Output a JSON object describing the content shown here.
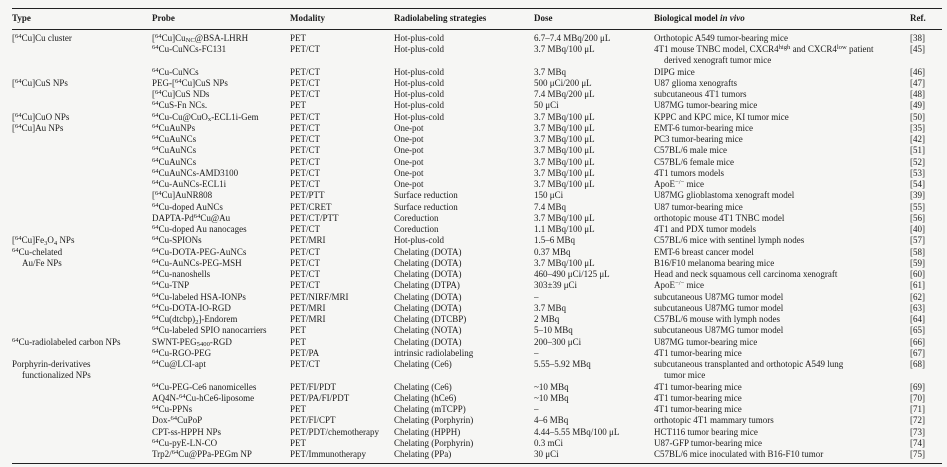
{
  "accent_colors": {
    "text": "#1b1b1b",
    "rule": "#222222",
    "background": "#f6f6f4"
  },
  "table": {
    "columns": [
      {
        "key": "type",
        "label": "Type"
      },
      {
        "key": "probe",
        "label": "Probe"
      },
      {
        "key": "modality",
        "label": "Modality"
      },
      {
        "key": "strategy",
        "label": "Radiolabeling strategies"
      },
      {
        "key": "dose",
        "label": "Dose"
      },
      {
        "key": "model",
        "label": "Biological model ~{in vivo}"
      },
      {
        "key": "ref",
        "label": "Ref."
      }
    ],
    "rows": [
      {
        "type": "[^{64}Cu]Cu cluster",
        "probe": "[^{64}Cu]Cu_{NC}@BSA-LHRH",
        "modality": "PET",
        "strategy": "Hot-plus-cold",
        "dose": "6.7–7.4 MBq/200 μL",
        "model": "Orthotopic A549 tumor-bearing mice",
        "ref": "[38]"
      },
      {
        "type": "",
        "probe": "^{64}Cu-CuNCs-FC131",
        "modality": "PET/CT",
        "strategy": "Hot-plus-cold",
        "dose": "3.7 MBq/100 μL",
        "model": "4T1 mouse TNBC model, CXCR4^{high} and CXCR4^{low} patient\nderived xenograft tumor mice",
        "ref": "[45]"
      },
      {
        "type": "",
        "probe": "^{64}Cu-CuNCs",
        "modality": "PET/CT",
        "strategy": "Hot-plus-cold",
        "dose": "3.7 MBq",
        "model": "DIPG mice",
        "ref": "[46]"
      },
      {
        "type": "[^{64}Cu]CuS NPs",
        "probe": "PEG-[^{64}Cu]CuS NPs",
        "modality": "PET/CT",
        "strategy": "Hot-plus-cold",
        "dose": "500 μCi/200 μL",
        "model": "U87 glioma xenografts",
        "ref": "[47]"
      },
      {
        "type": "",
        "probe": "[^{64}Cu]CuS NDs",
        "modality": "PET/CT",
        "strategy": "Hot-plus-cold",
        "dose": "7.4 MBq/200 μL",
        "model": "subcutaneous 4T1 tumors",
        "ref": "[48]"
      },
      {
        "type": "",
        "probe": "^{64}CuS-Fn NCs.",
        "modality": "PET",
        "strategy": "Hot-plus-cold",
        "dose": "50 μCi",
        "model": "U87MG tumor-bearing mice",
        "ref": "[49]"
      },
      {
        "type": "[^{64}Cu]CuO NPs",
        "probe": "^{64}Cu-Cu@CuO_{x}-ECL1i-Gem",
        "modality": "PET/CT",
        "strategy": "Hot-plus-cold",
        "dose": "3.7 MBq/100 μL",
        "model": "KPPC and KPC mice, KI tumor mice",
        "ref": "[50]"
      },
      {
        "type": "[^{64}Cu]Au NPs",
        "probe": "^{64}CuAuNPs",
        "modality": "PET/CT",
        "strategy": "One-pot",
        "dose": "3.7 MBq/100 μL",
        "model": "EMT-6 tumor-bearing mice",
        "ref": "[35]"
      },
      {
        "type": "",
        "probe": "^{64}CuAuNCs",
        "modality": "PET/CT",
        "strategy": "One-pot",
        "dose": "3.7 MBq/100 μL",
        "model": "PC3 tumor-bearing mice",
        "ref": "[42]"
      },
      {
        "type": "",
        "probe": "^{64}CuAuNCs",
        "modality": "PET/CT",
        "strategy": "One-pot",
        "dose": "3.7 MBq/100 μL",
        "model": "C57BL/6 male mice",
        "ref": "[51]"
      },
      {
        "type": "",
        "probe": "^{64}CuAuNCs",
        "modality": "PET/CT",
        "strategy": "One-pot",
        "dose": "3.7 MBq/100 μL",
        "model": "C57BL/6 female mice",
        "ref": "[52]"
      },
      {
        "type": "",
        "probe": "^{64}CuAuNCs-AMD3100",
        "modality": "PET/CT",
        "strategy": "One-pot",
        "dose": "3.7 MBq/100 μL",
        "model": "4T1 tumors models",
        "ref": "[53]"
      },
      {
        "type": "",
        "probe": "^{64}Cu-AuNCs-ECL1i",
        "modality": "PET/CT",
        "strategy": "One-pot",
        "dose": "3.7 MBq/100 μL",
        "model": "ApoE^{−/−} mice",
        "ref": "[54]"
      },
      {
        "type": "",
        "probe": "[^{64}Cu]AuNR808",
        "modality": "PET/PTT",
        "strategy": "Surface reduction",
        "dose": "150 μCi",
        "model": "U87MG glioblastoma xenograft model",
        "ref": "[39]"
      },
      {
        "type": "",
        "probe": "^{64}Cu-doped AuNCs",
        "modality": "PET/CRET",
        "strategy": "Surface reduction",
        "dose": "7.4 MBq",
        "model": "U87 tumor-bearing mice",
        "ref": "[55]"
      },
      {
        "type": "",
        "probe": "DAPTA-Pd^{64}Cu@Au",
        "modality": "PET/CT/PTT",
        "strategy": "Coreduction",
        "dose": "3.7 MBq/100 μL",
        "model": "orthotopic mouse 4T1 TNBC model",
        "ref": "[56]"
      },
      {
        "type": "",
        "probe": "^{64}Cu-doped Au nanocages",
        "modality": "PET/CT",
        "strategy": "Coreduction",
        "dose": "1.1 MBq/100 μL",
        "model": "4T1 and PDX tumor models",
        "ref": "[40]"
      },
      {
        "type": "[^{64}Cu]Fe_{3}O_{4} NPs",
        "probe": "^{64}Cu-SPIONs",
        "modality": "PET/MRI",
        "strategy": "Hot-plus-cold",
        "dose": "1.5–6 MBq",
        "model": "C57BL/6 mice with sentinel lymph nodes",
        "ref": "[57]"
      },
      {
        "type": "^{64}Cu-chelated\nAu/Fe NPs",
        "type_span": 2,
        "probe": "^{64}Cu-DOTA-PEG-AuNCs",
        "modality": "PET/CT",
        "strategy": "Chelating (DOTA)",
        "dose": "0.37 MBq",
        "model": "EMT-6 breast cancer model",
        "ref": "[58]"
      },
      {
        "type": null,
        "probe": "^{64}Cu-AuNCs-PEG-MSH",
        "modality": "PET/CT",
        "strategy": "Chelating (DOTA)",
        "dose": "3.7 MBq/100 μL",
        "model": "B16/F10 melanoma bearing mice",
        "ref": "[59]"
      },
      {
        "type": "",
        "probe": "^{64}Cu-nanoshells",
        "modality": "PET/CT",
        "strategy": "Chelating (DOTA)",
        "dose": "460–490 μCi/125 μL",
        "model": "Head and neck squamous cell carcinoma xenograft",
        "ref": "[60]"
      },
      {
        "type": "",
        "probe": "^{64}Cu-TNP",
        "modality": "PET/CT",
        "strategy": "Chelating (DTPA)",
        "dose": "303±39 μCi",
        "model": "ApoE^{−/−} mice",
        "ref": "[61]"
      },
      {
        "type": "",
        "probe": "^{64}Cu-labeled HSA-IONPs",
        "modality": "PET/NIRF/MRI",
        "strategy": "Chelating (DOTA)",
        "dose": "–",
        "model": "subcutaneous U87MG tumor model",
        "ref": "[62]"
      },
      {
        "type": "",
        "probe": "^{64}Cu-DOTA-IO-RGD",
        "modality": "PET/MRI",
        "strategy": "Chelating (DOTA)",
        "dose": "3.7 MBq",
        "model": "subcutaneous U87MG tumor model",
        "ref": "[63]"
      },
      {
        "type": "",
        "probe": "^{64}Cu(dtcbp)_{2}]-Endorem",
        "modality": "PET/MRI",
        "strategy": "Chelating (DTCBP)",
        "dose": "2 MBq",
        "model": "C57BL/6 mouse with lymph nodes",
        "ref": "[64]"
      },
      {
        "type": "",
        "probe": "^{64}Cu-labeled SPIO nanocarriers",
        "modality": "PET",
        "strategy": "Chelating (NOTA)",
        "dose": "5–10 MBq",
        "model": "subcutaneous U87MG tumor model",
        "ref": "[65]"
      },
      {
        "type": "^{64}Cu-radiolabeled carbon NPs",
        "probe": "SWNT-PEG_{5400}-RGD",
        "modality": "PET",
        "strategy": "Chelating (DOTA)",
        "dose": "200–300 μCi",
        "model": "U87MG tumor-bearing mice",
        "ref": "[66]"
      },
      {
        "type": "",
        "probe": "^{64}Cu-RGO-PEG",
        "modality": "PET/PA",
        "strategy": "intrinsic radiolabeling",
        "dose": "–",
        "model": "4T1 tumor-bearing mice",
        "ref": "[67]"
      },
      {
        "type": "Porphyrin-derivatives\nfunctionalized NPs",
        "probe": "^{64}Cu@LCI-apt",
        "modality": "PET/CT",
        "strategy": "Chelating (Ce6)",
        "dose": "5.55–5.92 MBq",
        "model": "subcutaneous transplanted and orthotopic A549 lung\ntumor mice",
        "ref": "[68]"
      },
      {
        "type": "",
        "probe": "^{64}Cu-PEG-Ce6 nanomicelles",
        "modality": "PET/FI/PDT",
        "strategy": "Chelating (Ce6)",
        "dose": "~10 MBq",
        "model": "4T1 tumor-bearing mice",
        "ref": "[69]"
      },
      {
        "type": "",
        "probe": "AQ4N-^{64}Cu-hCe6-liposome",
        "modality": "PET/PA/FI/PDT",
        "strategy": "Chelating (hCe6)",
        "dose": "~10 MBq",
        "model": "4T1 tumor-bearing mice",
        "ref": "[70]"
      },
      {
        "type": "",
        "probe": "^{64}Cu-PPNs",
        "modality": "PET",
        "strategy": "Chelating (mTCPP)",
        "dose": "–",
        "model": "4T1 tumor-bearing mice",
        "ref": "[71]"
      },
      {
        "type": "",
        "probe": "Dox-^{64}CuPoP",
        "modality": "PET/FI/CPT",
        "strategy": "Chelating (Porphyrin)",
        "dose": "4–6 MBq",
        "model": "orthotopic 4T1 mammary tumors",
        "ref": "[72]"
      },
      {
        "type": "",
        "probe": "CPT-ss-HPPH NPs",
        "modality": "PET/PDT/chemotherapy",
        "strategy": "Chelating (HPPH)",
        "dose": "4.44–5.55 MBq/100 μL",
        "model": "HCT116 tumor bearing mice",
        "ref": "[73]"
      },
      {
        "type": "",
        "probe": "^{64}Cu-pyE-LN-CO",
        "modality": "PET",
        "strategy": "Chelating (Porphyrin)",
        "dose": "0.3 mCi",
        "model": "U87-GFP tumor-bearing mice",
        "ref": "[74]"
      },
      {
        "type": "",
        "probe": "Trp2/^{64}Cu@PPa-PEGm NP",
        "modality": "PET/Immunotherapy",
        "strategy": "Chelating (PPa)",
        "dose": "30 μCi",
        "model": "C57BL/6 mice inoculated with B16-F10 tumor",
        "ref": "[75]"
      }
    ]
  }
}
